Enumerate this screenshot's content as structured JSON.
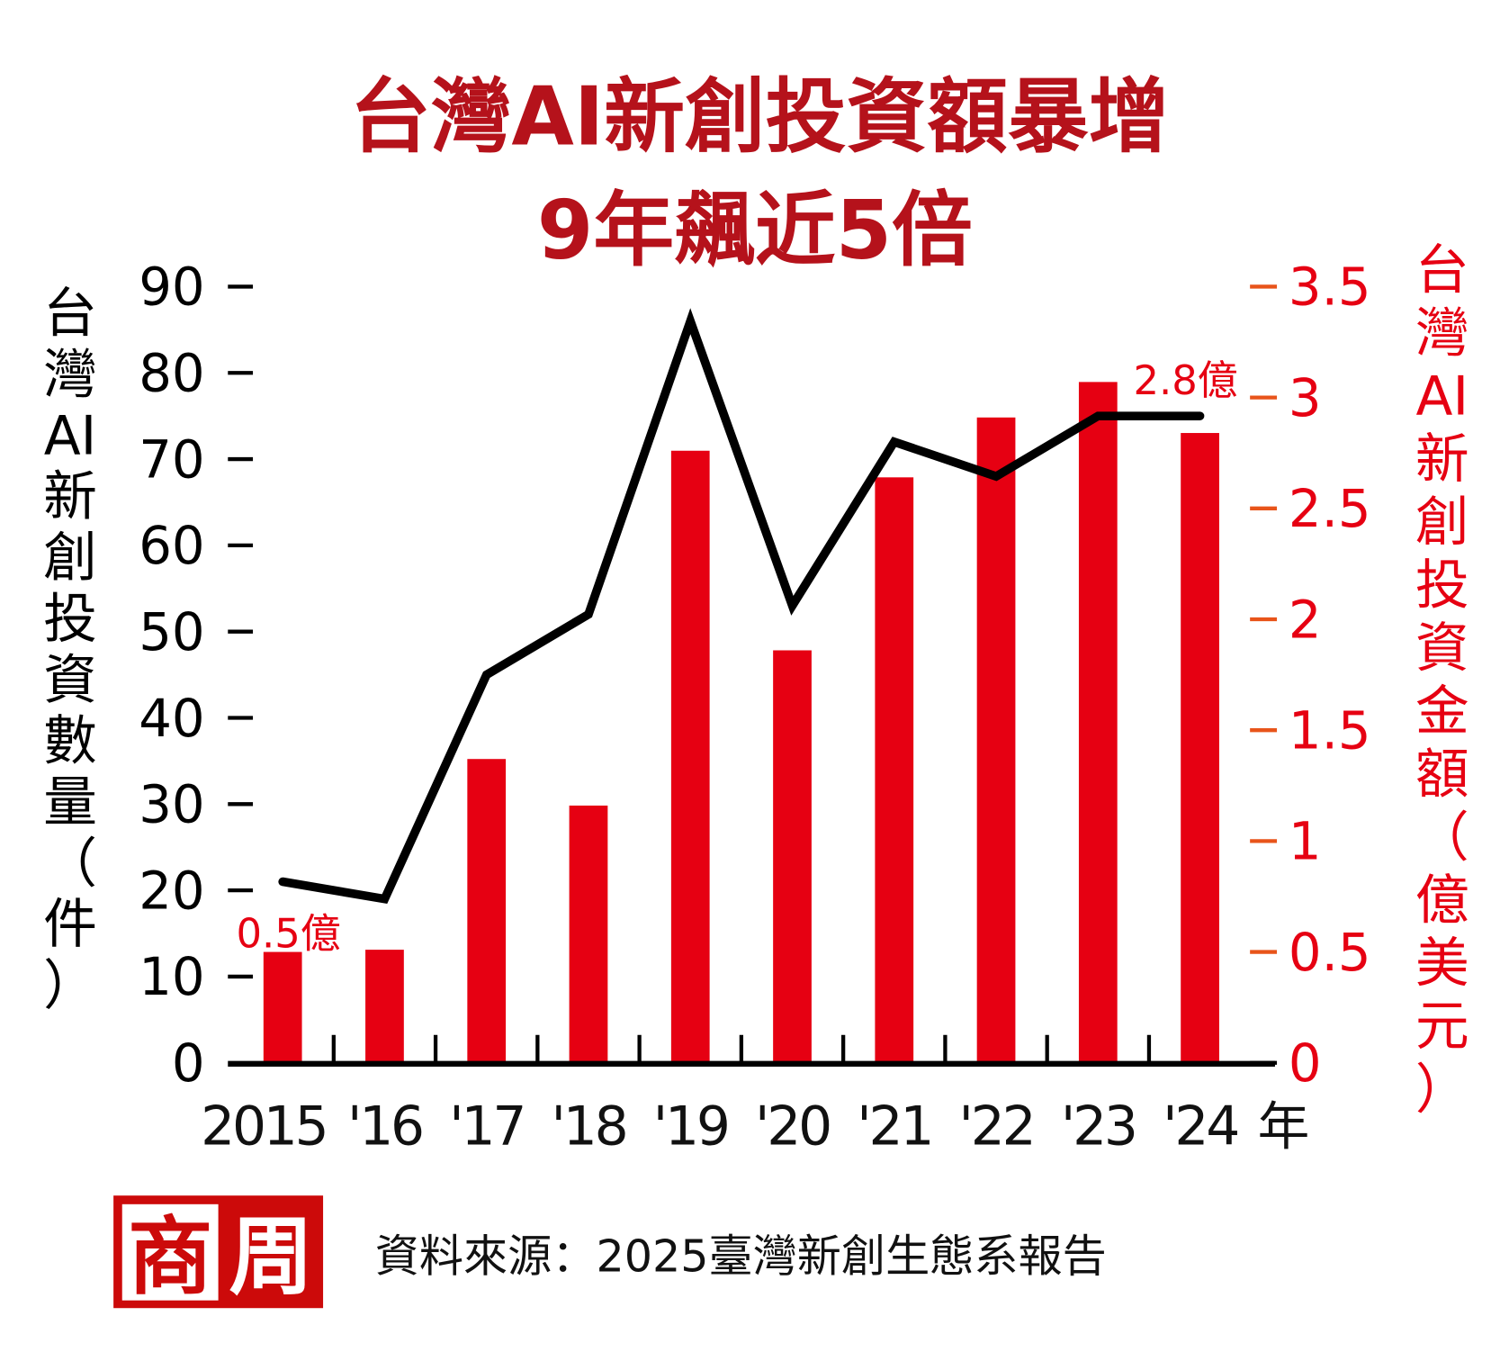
{
  "title": {
    "line1": "台灣AI新創投資額暴增",
    "line2": "9年飆近5倍"
  },
  "colors": {
    "bar": "#e60012",
    "line": "#000000",
    "title": "#b5121b",
    "right_tick": "#e8541a",
    "right_label": "#e60012",
    "logo": "#cc0a0a"
  },
  "chart_data": {
    "type": "bar+line",
    "title": "台灣AI新創投資額暴增 9年飆近5倍",
    "categories": [
      "2015",
      "'16",
      "'17",
      "'18",
      "'19",
      "'20",
      "'21",
      "'22",
      "'23",
      "'24"
    ],
    "x_unit": "年",
    "left_axis": {
      "label": [
        "台",
        "灣",
        "AI",
        "新",
        "創",
        "投",
        "資",
        "數",
        "量",
        "（",
        "件",
        "）"
      ],
      "ylim": [
        0,
        90
      ],
      "ticks": [
        "0",
        "10",
        "20",
        "30",
        "40",
        "50",
        "60",
        "70",
        "80",
        "90"
      ]
    },
    "right_axis": {
      "label": [
        "台",
        "灣",
        "AI",
        "新",
        "創",
        "投",
        "資",
        "金",
        "額",
        "（",
        "億",
        "美",
        "元",
        "）"
      ],
      "ylim": [
        0,
        3.5
      ],
      "ticks": [
        "0",
        "0.5",
        "1",
        "1.5",
        "2",
        "2.5",
        "3",
        "3.5"
      ]
    },
    "series": [
      {
        "type": "bar",
        "axis": "right",
        "values": [
          0.5,
          0.51,
          1.37,
          1.16,
          2.76,
          1.86,
          2.64,
          2.91,
          3.07,
          2.84
        ]
      },
      {
        "type": "line",
        "axis": "left",
        "values": [
          21,
          19,
          45,
          52,
          86,
          53,
          72,
          68,
          75,
          75
        ]
      }
    ],
    "annotations": [
      {
        "index": 0,
        "text": "0.5億"
      },
      {
        "index": 9,
        "text": "2.8億"
      }
    ],
    "grid": false
  },
  "footer": {
    "logo": "商周",
    "logo_chars": [
      "商",
      "周"
    ],
    "source": "資料來源：2025臺灣新創生態系報告"
  }
}
